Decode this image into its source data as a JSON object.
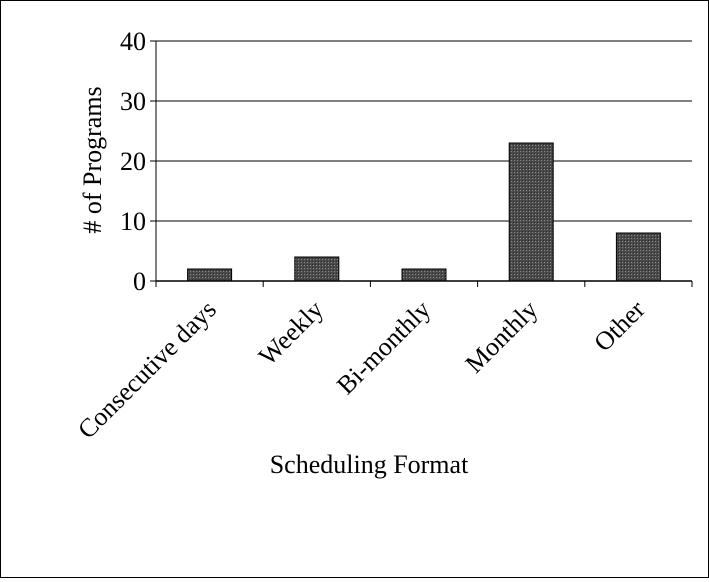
{
  "chart_data": {
    "type": "bar",
    "title": "",
    "xlabel": "Scheduling Format",
    "ylabel": "# of Programs",
    "categories": [
      "Consecutive days",
      "Weekly",
      "Bi-monthly",
      "Monthly",
      "Other"
    ],
    "values": [
      2,
      4,
      2,
      23,
      8
    ],
    "ylim": [
      0,
      40
    ],
    "yticks": [
      "0",
      "10",
      "20",
      "30",
      "40"
    ],
    "grid": true,
    "legend": "none",
    "bar_color": "#5a5a5a"
  }
}
